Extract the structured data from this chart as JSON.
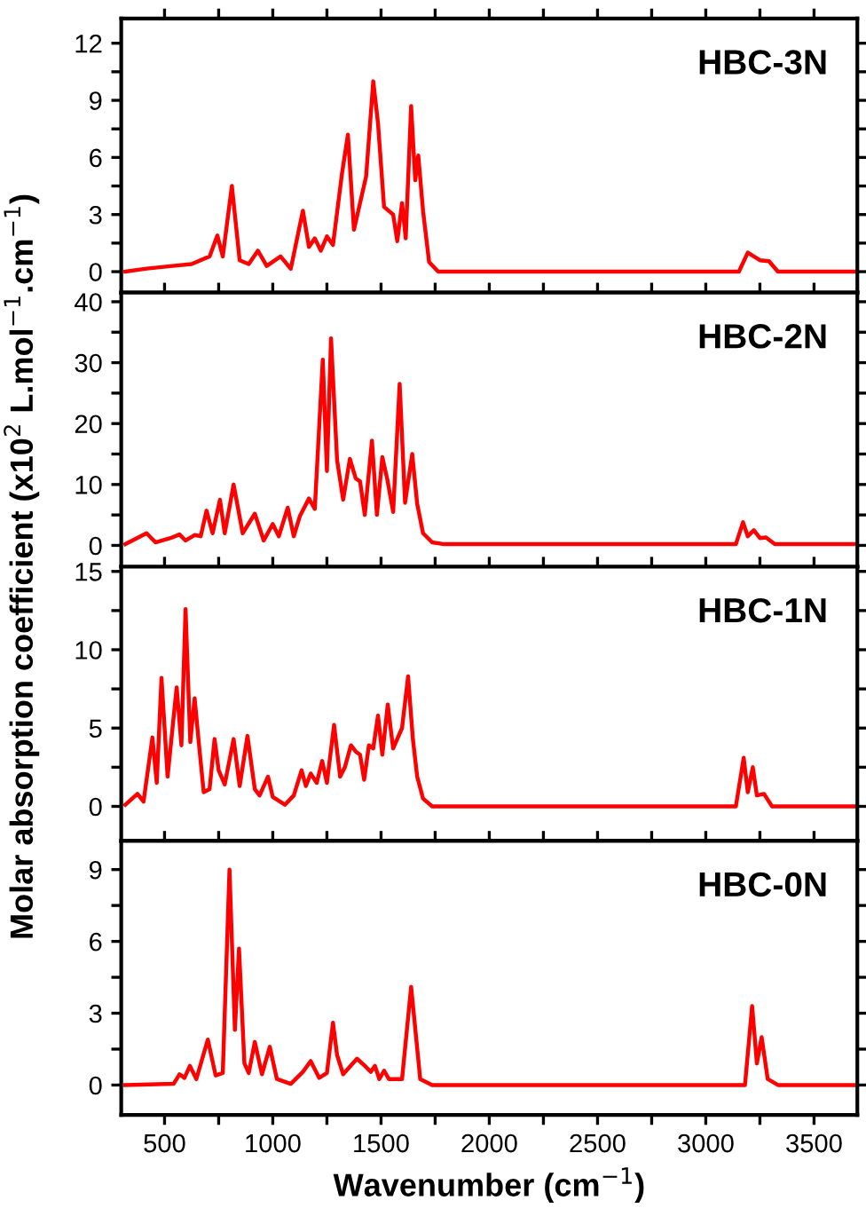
{
  "chart_data": [
    {
      "type": "line",
      "annotations": [
        "HBC-3N"
      ],
      "ylabel": "Molar absorption coefficient (x10$^{2}$ L.mol$^{−1}$.cm$^{−1}$)",
      "tick_labels": "y",
      "xlim": [
        300,
        3700
      ],
      "ylim": [
        -1.1,
        13.3
      ],
      "xticks": [
        {
          "value": 500,
          "label": null
        },
        {
          "value": 750,
          "label": null
        },
        {
          "value": 1000,
          "label": null
        },
        {
          "value": 1250,
          "label": null
        },
        {
          "value": 1500,
          "label": null
        },
        {
          "value": 1750,
          "label": null
        },
        {
          "value": 2000,
          "label": null
        },
        {
          "value": 2250,
          "label": null
        },
        {
          "value": 2500,
          "label": null
        },
        {
          "value": 2750,
          "label": null
        },
        {
          "value": 3000,
          "label": null
        },
        {
          "value": 3250,
          "label": null
        },
        {
          "value": 3500,
          "label": null
        }
      ],
      "yticks": [
        0,
        {
          "value": 1.5,
          "label": null
        },
        3,
        {
          "value": 4.5,
          "label": null
        },
        6,
        {
          "value": 7.5,
          "label": null
        },
        9,
        {
          "value": 10.5,
          "label": null
        },
        12
      ],
      "series": [
        {
          "color": "#ff0000",
          "x": [
            319,
            417,
            536,
            625,
            708,
            744,
            769,
            811,
            847,
            889,
            931,
            972,
            1036,
            1083,
            1139,
            1167,
            1194,
            1222,
            1250,
            1278,
            1319,
            1347,
            1375,
            1431,
            1464,
            1486,
            1514,
            1556,
            1575,
            1597,
            1614,
            1639,
            1658,
            1672,
            1694,
            1722,
            1764,
            3153,
            3194,
            3222,
            3250,
            3292,
            3333,
            3700
          ],
          "values": [
            0,
            0.16,
            0.3,
            0.4,
            0.8,
            1.9,
            0.8,
            4.5,
            0.6,
            0.4,
            1.1,
            0.3,
            0.8,
            0.15,
            3.2,
            1.3,
            1.75,
            1.1,
            1.85,
            1.4,
            5.1,
            7.2,
            2.2,
            5.0,
            10.0,
            7.8,
            3.4,
            3.0,
            1.6,
            3.6,
            1.75,
            8.7,
            4.8,
            6.1,
            3.2,
            0.5,
            0,
            0,
            1.0,
            0.8,
            0.6,
            0.55,
            0,
            0
          ]
        }
      ]
    },
    {
      "type": "line",
      "annotations": [
        "HBC-2N"
      ],
      "tick_labels": "y",
      "xlim": [
        300,
        3700
      ],
      "ylim": [
        -3.5,
        41.5
      ],
      "xticks": [
        {
          "value": 500,
          "label": null
        },
        {
          "value": 750,
          "label": null
        },
        {
          "value": 1000,
          "label": null
        },
        {
          "value": 1250,
          "label": null
        },
        {
          "value": 1500,
          "label": null
        },
        {
          "value": 1750,
          "label": null
        },
        {
          "value": 2000,
          "label": null
        },
        {
          "value": 2250,
          "label": null
        },
        {
          "value": 2500,
          "label": null
        },
        {
          "value": 2750,
          "label": null
        },
        {
          "value": 3000,
          "label": null
        },
        {
          "value": 3250,
          "label": null
        },
        {
          "value": 3500,
          "label": null
        }
      ],
      "yticks": [
        0,
        {
          "value": 5,
          "label": null
        },
        10,
        {
          "value": 15,
          "label": null
        },
        20,
        {
          "value": 25,
          "label": null
        },
        30,
        {
          "value": 35,
          "label": null
        },
        40
      ],
      "series": [
        {
          "color": "#ff0000",
          "x": [
            319,
            417,
            458,
            528,
            569,
            597,
            639,
            667,
            694,
            722,
            756,
            778,
            819,
            861,
            917,
            958,
            1000,
            1028,
            1069,
            1097,
            1125,
            1167,
            1194,
            1231,
            1250,
            1269,
            1297,
            1325,
            1356,
            1383,
            1403,
            1425,
            1458,
            1481,
            1506,
            1528,
            1556,
            1586,
            1611,
            1644,
            1667,
            1694,
            1736,
            1792,
            3139,
            3172,
            3194,
            3222,
            3250,
            3278,
            3319,
            3700
          ],
          "values": [
            0.2,
            2.0,
            0.5,
            1.2,
            1.8,
            0.8,
            1.7,
            1.5,
            5.7,
            2.0,
            7.5,
            2.0,
            10.0,
            2.0,
            5.2,
            0.8,
            3.5,
            1.5,
            6.2,
            1.5,
            4.8,
            7.7,
            6.0,
            30.5,
            12.2,
            34.0,
            14,
            7.5,
            14.2,
            11,
            10.5,
            5.0,
            17.2,
            5.0,
            14.5,
            11,
            5.5,
            26.5,
            7.0,
            15.0,
            6.8,
            2.0,
            0.5,
            0.2,
            0.2,
            3.8,
            1.5,
            2.5,
            1.2,
            1.3,
            0.2,
            0.2
          ]
        }
      ]
    },
    {
      "type": "line",
      "annotations": [
        "HBC-1N"
      ],
      "tick_labels": "y",
      "xlim": [
        300,
        3700
      ],
      "ylim": [
        -2.2,
        15.3
      ],
      "xticks": [
        {
          "value": 500,
          "label": null
        },
        {
          "value": 750,
          "label": null
        },
        {
          "value": 1000,
          "label": null
        },
        {
          "value": 1250,
          "label": null
        },
        {
          "value": 1500,
          "label": null
        },
        {
          "value": 1750,
          "label": null
        },
        {
          "value": 2000,
          "label": null
        },
        {
          "value": 2250,
          "label": null
        },
        {
          "value": 2500,
          "label": null
        },
        {
          "value": 2750,
          "label": null
        },
        {
          "value": 3000,
          "label": null
        },
        {
          "value": 3250,
          "label": null
        },
        {
          "value": 3500,
          "label": null
        }
      ],
      "yticks": [
        0,
        {
          "value": 2.5,
          "label": null
        },
        5,
        {
          "value": 7.5,
          "label": null
        },
        10,
        {
          "value": 12.5,
          "label": null
        },
        15
      ],
      "series": [
        {
          "color": "#ff0000",
          "x": [
            319,
            375,
            403,
            444,
            464,
            486,
            514,
            556,
            578,
            597,
            619,
            639,
            658,
            681,
            708,
            731,
            750,
            778,
            819,
            847,
            883,
            917,
            939,
            978,
            1000,
            1056,
            1097,
            1133,
            1153,
            1175,
            1203,
            1228,
            1250,
            1283,
            1311,
            1333,
            1361,
            1383,
            1403,
            1422,
            1444,
            1464,
            1486,
            1506,
            1531,
            1556,
            1597,
            1625,
            1647,
            1667,
            1694,
            1736,
            3139,
            3175,
            3194,
            3217,
            3236,
            3269,
            3306,
            3700
          ],
          "values": [
            0.1,
            0.8,
            0.3,
            4.4,
            1.5,
            8.2,
            1.9,
            7.6,
            3.9,
            12.6,
            4.1,
            6.9,
            4.1,
            0.9,
            1.1,
            4.3,
            2.3,
            1.4,
            4.3,
            1.3,
            4.5,
            1.1,
            0.7,
            1.9,
            0.6,
            0.1,
            0.7,
            2.3,
            1.3,
            2.1,
            1.5,
            2.9,
            1.5,
            5.2,
            1.9,
            2.5,
            3.9,
            3.5,
            3.3,
            1.7,
            3.9,
            3.7,
            5.8,
            3.3,
            6.5,
            3.7,
            5.0,
            8.3,
            4.3,
            1.9,
            0.5,
            0,
            0,
            3.1,
            0.9,
            2.5,
            0.7,
            0.8,
            0,
            0
          ]
        }
      ]
    },
    {
      "type": "line",
      "annotations": [
        "HBC-0N"
      ],
      "xlabel": "Wavenumber (cm$^{−1}$)",
      "xlim": [
        300,
        3700
      ],
      "ylim": [
        -1.25,
        10.2
      ],
      "xticks": [
        500,
        {
          "value": 750,
          "label": null
        },
        1000,
        {
          "value": 1250,
          "label": null
        },
        1500,
        {
          "value": 1750,
          "label": null
        },
        2000,
        {
          "value": 2250,
          "label": null
        },
        2500,
        {
          "value": 2750,
          "label": null
        },
        3000,
        {
          "value": 3250,
          "label": null
        },
        3500
      ],
      "yticks": [
        0,
        {
          "value": 1.5,
          "label": null
        },
        3,
        {
          "value": 4.5,
          "label": null
        },
        6,
        {
          "value": 7.5,
          "label": null
        },
        9
      ],
      "series": [
        {
          "color": "#ff0000",
          "x": [
            319,
            542,
            569,
            592,
            617,
            647,
            700,
            736,
            769,
            800,
            825,
            844,
            869,
            889,
            917,
            950,
            986,
            1019,
            1083,
            1139,
            1175,
            1214,
            1250,
            1278,
            1297,
            1325,
            1389,
            1431,
            1453,
            1472,
            1492,
            1514,
            1536,
            1597,
            1639,
            1681,
            1736,
            3181,
            3214,
            3236,
            3258,
            3286,
            3333,
            3700
          ],
          "values": [
            0,
            0.05,
            0.45,
            0.3,
            0.8,
            0.25,
            1.9,
            0.4,
            0.5,
            9.0,
            2.3,
            5.7,
            0.9,
            0.5,
            1.8,
            0.45,
            1.6,
            0.25,
            0.05,
            0.55,
            1.0,
            0.3,
            0.5,
            2.6,
            1.25,
            0.45,
            1.1,
            0.75,
            0.55,
            0.8,
            0.25,
            0.6,
            0.25,
            0.25,
            4.1,
            0.25,
            0,
            0,
            3.3,
            0.9,
            2.0,
            0.25,
            0,
            0
          ]
        }
      ]
    }
  ]
}
